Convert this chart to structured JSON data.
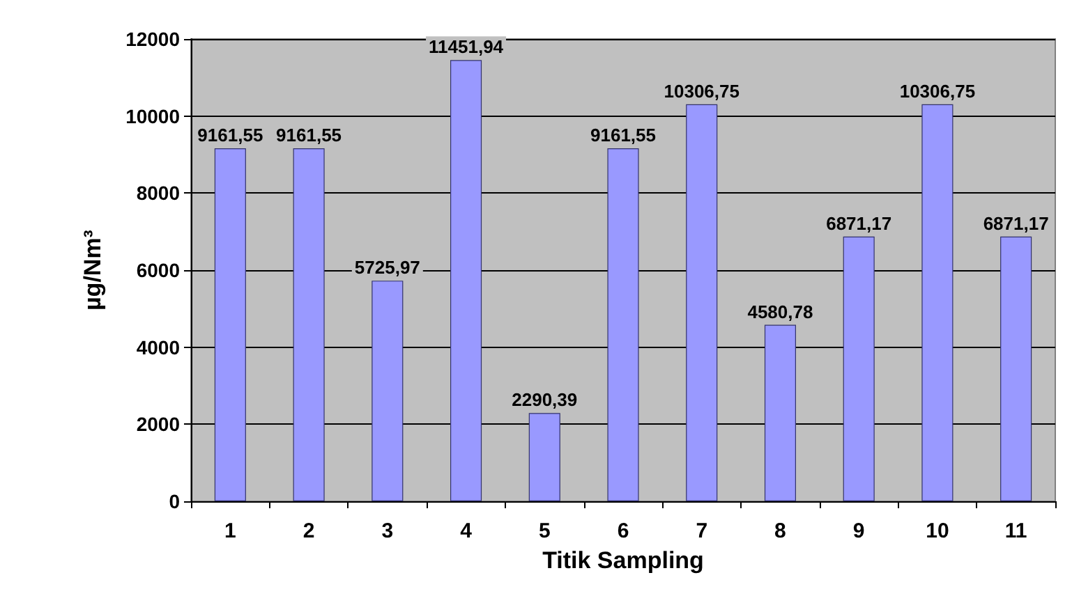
{
  "chart_data": {
    "type": "bar",
    "xlabel": "Titik Sampling",
    "ylabel": "µg/Nm³",
    "categories": [
      "1",
      "2",
      "3",
      "4",
      "5",
      "6",
      "7",
      "8",
      "9",
      "10",
      "11"
    ],
    "values": [
      9161.55,
      9161.55,
      5725.97,
      11451.94,
      2290.39,
      9161.55,
      10306.75,
      4580.78,
      6871.17,
      10306.75,
      6871.17
    ],
    "value_labels": [
      "9161,55",
      "9161,55",
      "5725,97",
      "11451,94",
      "2290,39",
      "9161,55",
      "10306,75",
      "4580,78",
      "6871,17",
      "10306,75",
      "6871,17"
    ],
    "color": "#9999ff",
    "ylim": [
      0,
      12000
    ],
    "yticks": [
      0,
      2000,
      4000,
      6000,
      8000,
      10000,
      12000
    ],
    "grid": "y"
  }
}
